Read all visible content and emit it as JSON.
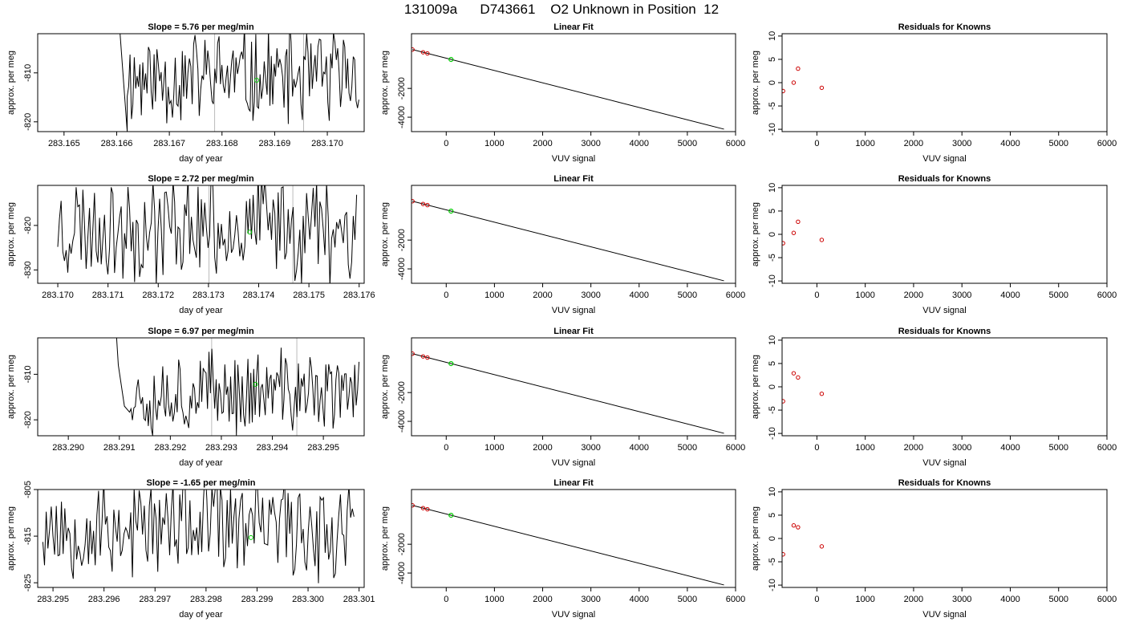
{
  "figure_title": "131009a      D743661    O2 Unknown in Position  12",
  "colors": {
    "trace": "#000000",
    "known": "#cc0000",
    "unknown": "#00cc00",
    "marker_line": "#bbbbbb"
  },
  "chart_data": [
    {
      "row": 1,
      "panel": "time",
      "type": "line",
      "title": "Slope =  5.76  per meg/min",
      "xlabel": "day of year",
      "ylabel": "approx. per meg",
      "xlim": [
        283.1645,
        283.1707
      ],
      "ylim": [
        -822,
        -802
      ],
      "xticks": [
        283.165,
        283.166,
        283.167,
        283.168,
        283.169,
        283.17
      ],
      "xticklabels": [
        "283.165",
        "283.166",
        "283.167",
        "283.168",
        "283.169",
        "283.170"
      ],
      "yticks": [
        -810,
        -820
      ],
      "yticklabels": [
        "-810",
        "-820"
      ],
      "vlines": [
        283.16786,
        283.16955
      ],
      "unknown_point": {
        "x": 283.16866,
        "y": -811.5
      },
      "trace": {
        "x_start": 283.1662,
        "x_end": 283.1706,
        "n": 165,
        "center": -811,
        "amplitude": 10,
        "seed": 11,
        "lead_in": [
          [
            283.16596,
            -770
          ],
          [
            283.16605,
            -800
          ],
          [
            283.1662,
            -822
          ]
        ]
      }
    },
    {
      "row": 1,
      "panel": "fit",
      "type": "line",
      "title": "Linear Fit",
      "xlabel": "VUV signal",
      "ylabel": "approx. per meg",
      "xlim": [
        -720,
        6000
      ],
      "ylim": [
        -5000,
        1800
      ],
      "xticks": [
        0,
        1000,
        2000,
        3000,
        4000,
        5000,
        6000
      ],
      "xticklabels": [
        "0",
        "1000",
        "2000",
        "3000",
        "4000",
        "5000",
        "6000"
      ],
      "yticks": [
        -2000,
        -4000
      ],
      "yticklabels": [
        "-2000",
        "-4000"
      ],
      "line": [
        [
          -700,
          700
        ],
        [
          5760,
          -4830
        ]
      ],
      "knowns": [
        [
          -700,
          700
        ],
        [
          -480,
          510
        ],
        [
          -390,
          430
        ]
      ],
      "unknown": [
        [
          100,
          10
        ]
      ]
    },
    {
      "row": 1,
      "panel": "residuals",
      "type": "scatter",
      "title": "Residuals for Knowns",
      "xlabel": "VUV signal",
      "ylabel": "approx. per meg",
      "xlim": [
        -720,
        6000
      ],
      "ylim": [
        -10.5,
        10.5
      ],
      "xticks": [
        0,
        1000,
        2000,
        3000,
        4000,
        5000,
        6000
      ],
      "xticklabels": [
        "0",
        "1000",
        "2000",
        "3000",
        "4000",
        "5000",
        "6000"
      ],
      "yticks": [
        10,
        5,
        0,
        -5,
        -10
      ],
      "yticklabels": [
        "10",
        "5",
        "0",
        "-5",
        "-10"
      ],
      "points": [
        [
          -700,
          -1.8
        ],
        [
          -480,
          0
        ],
        [
          -390,
          3.0
        ],
        [
          100,
          -1.1
        ]
      ]
    },
    {
      "row": 2,
      "panel": "time",
      "type": "line",
      "title": "Slope =  2.72  per meg/min",
      "xlabel": "day of year",
      "ylabel": "approx. per meg",
      "xlim": [
        283.1696,
        283.1761
      ],
      "ylim": [
        -833,
        -811
      ],
      "xticks": [
        283.17,
        283.171,
        283.172,
        283.173,
        283.174,
        283.175,
        283.176
      ],
      "xticklabels": [
        "283.170",
        "283.171",
        "283.172",
        "283.173",
        "283.174",
        "283.175",
        "283.176"
      ],
      "yticks": [
        -820,
        -830
      ],
      "yticklabels": [
        "-820",
        "-830"
      ],
      "vlines": [
        283.17301,
        283.17468
      ],
      "unknown_point": {
        "x": 283.17382,
        "y": -821.5
      },
      "trace": {
        "x_start": 283.17,
        "x_end": 283.17595,
        "n": 180,
        "center": -820,
        "amplitude": 12,
        "seed": 23,
        "lead_in": []
      }
    },
    {
      "row": 2,
      "panel": "fit",
      "type": "line",
      "title": "Linear Fit",
      "xlabel": "VUV signal",
      "ylabel": "approx. per meg",
      "xlim": [
        -720,
        6000
      ],
      "ylim": [
        -5000,
        1800
      ],
      "xticks": [
        0,
        1000,
        2000,
        3000,
        4000,
        5000,
        6000
      ],
      "xticklabels": [
        "0",
        "1000",
        "2000",
        "3000",
        "4000",
        "5000",
        "6000"
      ],
      "yticks": [
        -2000,
        -4000
      ],
      "yticklabels": [
        "-2000",
        "-4000"
      ],
      "line": [
        [
          -700,
          700
        ],
        [
          5760,
          -4830
        ]
      ],
      "knowns": [
        [
          -700,
          700
        ],
        [
          -480,
          510
        ],
        [
          -390,
          430
        ]
      ],
      "unknown": [
        [
          100,
          10
        ]
      ]
    },
    {
      "row": 2,
      "panel": "residuals",
      "type": "scatter",
      "title": "Residuals for Knowns",
      "xlabel": "VUV signal",
      "ylabel": "approx. per meg",
      "xlim": [
        -720,
        6000
      ],
      "ylim": [
        -10.5,
        10.5
      ],
      "xticks": [
        0,
        1000,
        2000,
        3000,
        4000,
        5000,
        6000
      ],
      "xticklabels": [
        "0",
        "1000",
        "2000",
        "3000",
        "4000",
        "5000",
        "6000"
      ],
      "yticks": [
        10,
        5,
        0,
        -5,
        -10
      ],
      "yticklabels": [
        "10",
        "5",
        "0",
        "-5",
        "-10"
      ],
      "points": [
        [
          -700,
          -1.9
        ],
        [
          -480,
          0.3
        ],
        [
          -390,
          2.7
        ],
        [
          100,
          -1.2
        ]
      ]
    },
    {
      "row": 3,
      "panel": "time",
      "type": "line",
      "title": "Slope =  6.97  per meg/min",
      "xlabel": "day of year",
      "ylabel": "approx. per meg",
      "xlim": [
        283.2894,
        283.2958
      ],
      "ylim": [
        -823.5,
        -802
      ],
      "xticks": [
        283.29,
        283.291,
        283.292,
        283.293,
        283.294,
        283.295
      ],
      "xticklabels": [
        "283.290",
        "283.291",
        "283.292",
        "283.293",
        "283.294",
        "283.295"
      ],
      "yticks": [
        -810,
        -820
      ],
      "yticklabels": [
        "-810",
        "-820"
      ],
      "vlines": [
        283.29281,
        283.29448
      ],
      "unknown_point": {
        "x": 283.29367,
        "y": -812.2
      },
      "trace": {
        "x_start": 283.2912,
        "x_end": 283.2957,
        "n": 160,
        "center": -814,
        "amplitude": 9,
        "seed": 37,
        "lead_in": [
          [
            283.29088,
            -790
          ],
          [
            283.29098,
            -808
          ],
          [
            283.2911,
            -817
          ]
        ]
      }
    },
    {
      "row": 3,
      "panel": "fit",
      "type": "line",
      "title": "Linear Fit",
      "xlabel": "VUV signal",
      "ylabel": "approx. per meg",
      "xlim": [
        -720,
        6000
      ],
      "ylim": [
        -5000,
        1800
      ],
      "xticks": [
        0,
        1000,
        2000,
        3000,
        4000,
        5000,
        6000
      ],
      "xticklabels": [
        "0",
        "1000",
        "2000",
        "3000",
        "4000",
        "5000",
        "6000"
      ],
      "yticks": [
        -2000,
        -4000
      ],
      "yticklabels": [
        "-2000",
        "-4000"
      ],
      "line": [
        [
          -700,
          700
        ],
        [
          5760,
          -4830
        ]
      ],
      "knowns": [
        [
          -700,
          700
        ],
        [
          -480,
          510
        ],
        [
          -390,
          430
        ]
      ],
      "unknown": [
        [
          100,
          10
        ]
      ]
    },
    {
      "row": 3,
      "panel": "residuals",
      "type": "scatter",
      "title": "Residuals for Knowns",
      "xlabel": "VUV signal",
      "ylabel": "approx. per meg",
      "xlim": [
        -720,
        6000
      ],
      "ylim": [
        -10.5,
        10.5
      ],
      "xticks": [
        0,
        1000,
        2000,
        3000,
        4000,
        5000,
        6000
      ],
      "xticklabels": [
        "0",
        "1000",
        "2000",
        "3000",
        "4000",
        "5000",
        "6000"
      ],
      "yticks": [
        10,
        5,
        0,
        -5,
        -10
      ],
      "yticklabels": [
        "10",
        "5",
        "0",
        "-5",
        "-10"
      ],
      "points": [
        [
          -700,
          -3.1
        ],
        [
          -480,
          2.9
        ],
        [
          -390,
          2.0
        ],
        [
          100,
          -1.5
        ]
      ]
    },
    {
      "row": 4,
      "panel": "time",
      "type": "line",
      "title": "Slope =  -1.65  per meg/min",
      "xlabel": "day of year",
      "ylabel": "approx. per meg",
      "xlim": [
        283.2947,
        283.3011
      ],
      "ylim": [
        -826,
        -805
      ],
      "xticks": [
        283.295,
        283.296,
        283.297,
        283.298,
        283.299,
        283.3,
        283.301
      ],
      "xticklabels": [
        "283.295",
        "283.296",
        "283.297",
        "283.298",
        "283.299",
        "283.300",
        "283.301"
      ],
      "yticks": [
        -805,
        -815,
        -825
      ],
      "yticklabels": [
        "-805",
        "-815",
        "-825"
      ],
      "vlines": [],
      "unknown_point": {
        "x": 283.29888,
        "y": -815.3
      },
      "trace": {
        "x_start": 283.2948,
        "x_end": 283.3009,
        "n": 185,
        "center": -813,
        "amplitude": 11,
        "seed": 53,
        "lead_in": []
      }
    },
    {
      "row": 4,
      "panel": "fit",
      "type": "line",
      "title": "Linear Fit",
      "xlabel": "VUV signal",
      "ylabel": "approx. per meg",
      "xlim": [
        -720,
        6000
      ],
      "ylim": [
        -5000,
        1800
      ],
      "xticks": [
        0,
        1000,
        2000,
        3000,
        4000,
        5000,
        6000
      ],
      "xticklabels": [
        "0",
        "1000",
        "2000",
        "3000",
        "4000",
        "5000",
        "6000"
      ],
      "yticks": [
        -2000,
        -4000
      ],
      "yticklabels": [
        "-2000",
        "-4000"
      ],
      "line": [
        [
          -700,
          700
        ],
        [
          5760,
          -4830
        ]
      ],
      "knowns": [
        [
          -700,
          700
        ],
        [
          -480,
          510
        ],
        [
          -390,
          430
        ]
      ],
      "unknown": [
        [
          100,
          10
        ]
      ]
    },
    {
      "row": 4,
      "panel": "residuals",
      "type": "scatter",
      "title": "Residuals for Knowns",
      "xlabel": "VUV signal",
      "ylabel": "approx. per meg",
      "xlim": [
        -720,
        6000
      ],
      "ylim": [
        -10.5,
        10.5
      ],
      "xticks": [
        0,
        1000,
        2000,
        3000,
        4000,
        5000,
        6000
      ],
      "xticklabels": [
        "0",
        "1000",
        "2000",
        "3000",
        "4000",
        "5000",
        "6000"
      ],
      "yticks": [
        10,
        5,
        0,
        -5,
        -10
      ],
      "yticklabels": [
        "10",
        "5",
        "0",
        "-5",
        "-10"
      ],
      "points": [
        [
          -700,
          -3.4
        ],
        [
          -480,
          2.8
        ],
        [
          -390,
          2.4
        ],
        [
          100,
          -1.7
        ]
      ]
    }
  ]
}
